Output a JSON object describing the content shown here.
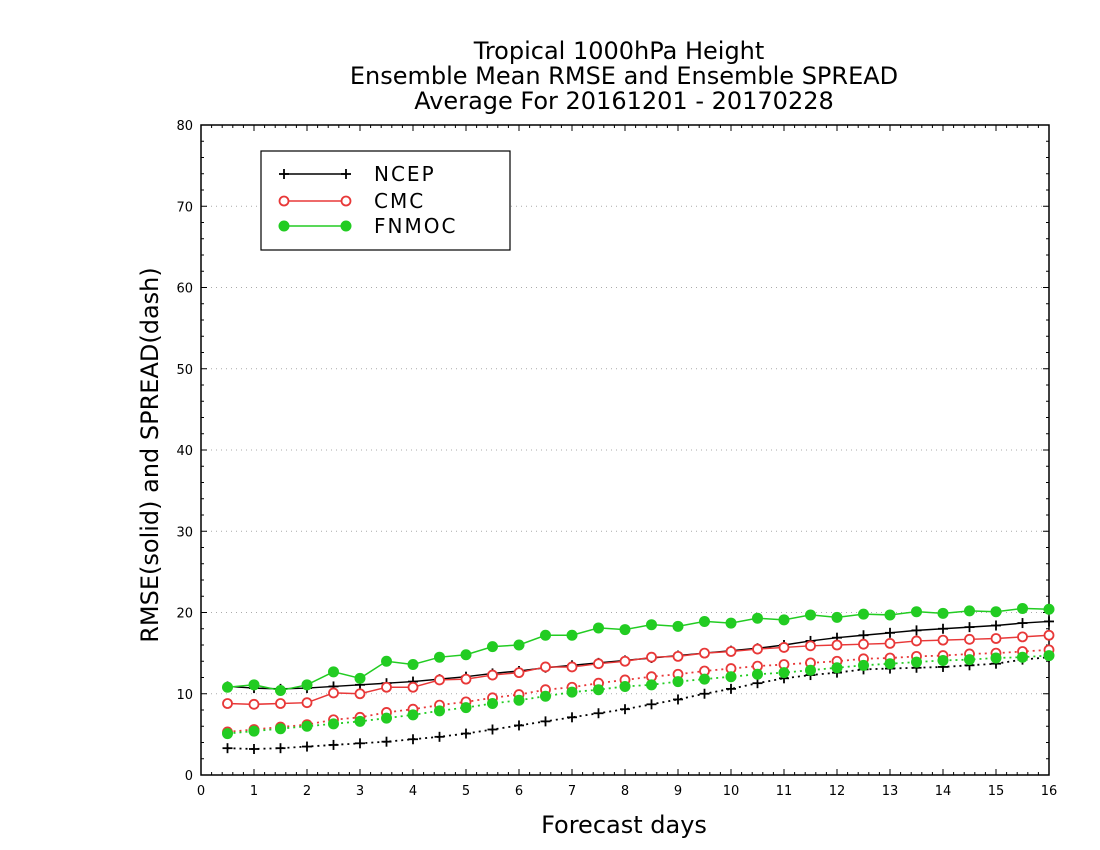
{
  "chart_data": {
    "type": "line",
    "title_lines": [
      "Tropical 1000hPa Height",
      "Ensemble Mean RMSE and Ensemble SPREAD",
      "Average For 20161201 - 20170228"
    ],
    "xlabel": "Forecast days",
    "ylabel": "RMSE(solid) and SPREAD(dash)",
    "xlim": [
      0,
      16
    ],
    "ylim": [
      0,
      80
    ],
    "x_ticks": [
      "0",
      "1",
      "2",
      "3",
      "4",
      "5",
      "6",
      "7",
      "8",
      "9",
      "10",
      "11",
      "12",
      "13",
      "14",
      "15",
      "16"
    ],
    "y_ticks": [
      "0",
      "10",
      "20",
      "30",
      "40",
      "50",
      "60",
      "70",
      "80"
    ],
    "grid": "horizontal dotted",
    "legend_position": "top-left",
    "x": [
      0.5,
      1,
      1.5,
      2,
      2.5,
      3,
      3.5,
      4,
      4.5,
      5,
      5.5,
      6,
      6.5,
      7,
      7.5,
      8,
      8.5,
      9,
      9.5,
      10,
      10.5,
      11,
      11.5,
      12,
      12.5,
      13,
      13.5,
      14,
      14.5,
      15,
      15.5,
      16
    ],
    "series": [
      {
        "name": "NCEP",
        "color": "#000000",
        "marker": "plus",
        "rmse": [
          10.9,
          10.7,
          10.6,
          10.7,
          10.9,
          11.1,
          11.3,
          11.5,
          11.8,
          12.1,
          12.5,
          12.8,
          13.2,
          13.5,
          13.8,
          14.1,
          14.4,
          14.7,
          15.0,
          15.3,
          15.6,
          16.0,
          16.5,
          16.9,
          17.2,
          17.5,
          17.8,
          18.0,
          18.2,
          18.4,
          18.7,
          18.9
        ],
        "spread": [
          3.3,
          3.2,
          3.3,
          3.5,
          3.7,
          3.9,
          4.1,
          4.4,
          4.7,
          5.1,
          5.6,
          6.1,
          6.6,
          7.1,
          7.6,
          8.1,
          8.7,
          9.3,
          10.0,
          10.6,
          11.3,
          11.9,
          12.3,
          12.6,
          13.0,
          13.1,
          13.2,
          13.3,
          13.5,
          13.7,
          14.2,
          14.5
        ]
      },
      {
        "name": "CMC",
        "color": "#e83838",
        "marker": "open-circle",
        "rmse": [
          8.8,
          8.7,
          8.8,
          8.9,
          10.1,
          10.0,
          10.8,
          10.8,
          11.7,
          11.8,
          12.3,
          12.6,
          13.3,
          13.3,
          13.7,
          14.0,
          14.5,
          14.6,
          15.0,
          15.2,
          15.5,
          15.7,
          15.9,
          16.0,
          16.1,
          16.2,
          16.5,
          16.6,
          16.7,
          16.8,
          17.0,
          17.2
        ],
        "spread": [
          5.3,
          5.6,
          5.9,
          6.2,
          6.8,
          7.1,
          7.7,
          8.1,
          8.6,
          9.0,
          9.5,
          9.9,
          10.5,
          10.8,
          11.3,
          11.7,
          12.1,
          12.4,
          12.8,
          13.1,
          13.4,
          13.6,
          13.8,
          14.0,
          14.3,
          14.4,
          14.6,
          14.7,
          14.9,
          15.0,
          15.2,
          15.4
        ]
      },
      {
        "name": "FNMOC",
        "color": "#22cc22",
        "marker": "filled-circle",
        "rmse": [
          10.8,
          11.1,
          10.4,
          11.1,
          12.7,
          11.9,
          14.0,
          13.6,
          14.5,
          14.8,
          15.8,
          16.0,
          17.2,
          17.2,
          18.1,
          17.9,
          18.5,
          18.3,
          18.9,
          18.7,
          19.3,
          19.1,
          19.7,
          19.4,
          19.8,
          19.7,
          20.1,
          19.9,
          20.2,
          20.1,
          20.5,
          20.4
        ],
        "spread": [
          5.1,
          5.4,
          5.7,
          6.0,
          6.3,
          6.6,
          7.0,
          7.4,
          7.9,
          8.3,
          8.8,
          9.2,
          9.7,
          10.2,
          10.5,
          10.9,
          11.1,
          11.5,
          11.8,
          12.1,
          12.4,
          12.6,
          12.9,
          13.2,
          13.5,
          13.7,
          13.9,
          14.1,
          14.2,
          14.4,
          14.5,
          14.7
        ]
      }
    ]
  }
}
